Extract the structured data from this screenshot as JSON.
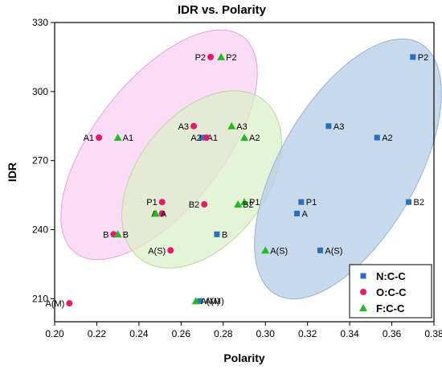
{
  "chart_data": {
    "type": "scatter",
    "title": "IDR vs. Polarity",
    "xlabel": "Polarity",
    "ylabel": "IDR",
    "xlim": [
      0.2,
      0.38
    ],
    "ylim": [
      200,
      330
    ],
    "xticks": [
      "0.20",
      "0.22",
      "0.24",
      "0.26",
      "0.28",
      "0.30",
      "0.32",
      "0.34",
      "0.36",
      "0.38"
    ],
    "yticks": [
      "210",
      "240",
      "270",
      "300",
      "330"
    ],
    "legend_position": "bottom-right",
    "series": [
      {
        "name": "N:C-C",
        "marker": "square",
        "color": "#2a6fbd",
        "ellipse_color": "#b8d0e8",
        "points": [
          {
            "label": "P2",
            "x": 0.37,
            "y": 315
          },
          {
            "label": "A3",
            "x": 0.33,
            "y": 285
          },
          {
            "label": "A2",
            "x": 0.353,
            "y": 280
          },
          {
            "label": "A1",
            "x": 0.27,
            "y": 280
          },
          {
            "label": "P1",
            "x": 0.317,
            "y": 252
          },
          {
            "label": "B2",
            "x": 0.368,
            "y": 252
          },
          {
            "label": "A",
            "x": 0.315,
            "y": 247
          },
          {
            "label": "B",
            "x": 0.277,
            "y": 238
          },
          {
            "label": "A(S)",
            "x": 0.326,
            "y": 231
          },
          {
            "label": "A(M)",
            "x": 0.269,
            "y": 209
          }
        ]
      },
      {
        "name": "O:C-C",
        "marker": "circle",
        "color": "#e8186b",
        "ellipse_color": "#f9d0f0",
        "points": [
          {
            "label": "P2",
            "x": 0.274,
            "y": 315
          },
          {
            "label": "A3",
            "x": 0.266,
            "y": 285
          },
          {
            "label": "A2",
            "x": 0.272,
            "y": 280
          },
          {
            "label": "A1",
            "x": 0.221,
            "y": 280
          },
          {
            "label": "P1",
            "x": 0.251,
            "y": 252
          },
          {
            "label": "B2",
            "x": 0.271,
            "y": 251
          },
          {
            "label": "A",
            "x": 0.251,
            "y": 247
          },
          {
            "label": "B",
            "x": 0.228,
            "y": 238
          },
          {
            "label": "A(S)",
            "x": 0.255,
            "y": 231
          },
          {
            "label": "A(M)",
            "x": 0.207,
            "y": 208
          }
        ]
      },
      {
        "name": "F:C-C",
        "marker": "triangle",
        "color": "#22bb22",
        "ellipse_color": "#dcefc8",
        "points": [
          {
            "label": "P2",
            "x": 0.279,
            "y": 315
          },
          {
            "label": "A3",
            "x": 0.284,
            "y": 285
          },
          {
            "label": "A2",
            "x": 0.29,
            "y": 280
          },
          {
            "label": "A1",
            "x": 0.23,
            "y": 280
          },
          {
            "label": "P1",
            "x": 0.29,
            "y": 252
          },
          {
            "label": "B2",
            "x": 0.287,
            "y": 251
          },
          {
            "label": "A",
            "x": 0.248,
            "y": 247
          },
          {
            "label": "B",
            "x": 0.23,
            "y": 238
          },
          {
            "label": "A(S)",
            "x": 0.3,
            "y": 231
          },
          {
            "label": "A(M)",
            "x": 0.267,
            "y": 209
          }
        ]
      }
    ]
  }
}
